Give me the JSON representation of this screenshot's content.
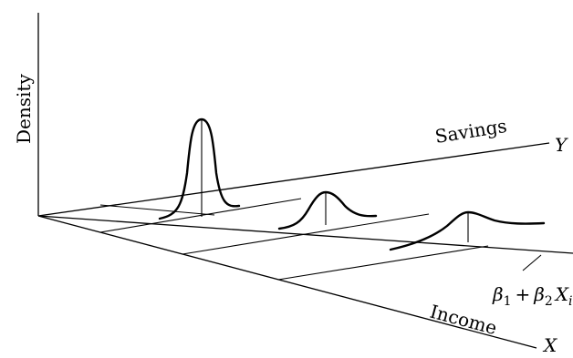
{
  "labels": {
    "density": "Density",
    "savings": "Savings",
    "y_axis": "Y",
    "income": "Income",
    "x_axis": "X",
    "regression": {
      "beta": "β",
      "sub1": "1",
      "plus": "+",
      "sub2": "2",
      "x": "X",
      "sub_i": "i"
    }
  }
}
